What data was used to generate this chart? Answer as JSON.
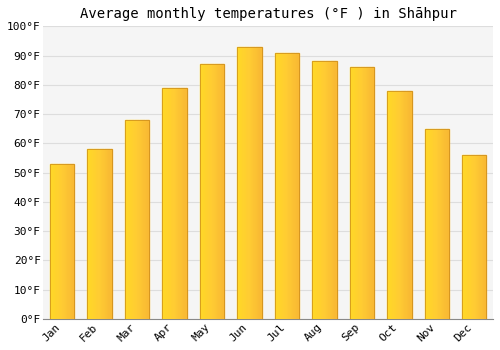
{
  "title": "Average monthly temperatures (°F ) in Shāhpur",
  "months": [
    "Jan",
    "Feb",
    "Mar",
    "Apr",
    "May",
    "Jun",
    "Jul",
    "Aug",
    "Sep",
    "Oct",
    "Nov",
    "Dec"
  ],
  "values": [
    53,
    58,
    68,
    79,
    87,
    93,
    91,
    88,
    86,
    78,
    65,
    56
  ],
  "bar_color": "#F5A800",
  "bar_color_light": "#FFCC44",
  "bar_edge_color": "#C8881A",
  "background_color": "#FFFFFF",
  "plot_bg_color": "#F5F5F5",
  "grid_color": "#DDDDDD",
  "ylim": [
    0,
    100
  ],
  "yticks": [
    0,
    10,
    20,
    30,
    40,
    50,
    60,
    70,
    80,
    90,
    100
  ],
  "ytick_labels": [
    "0°F",
    "10°F",
    "20°F",
    "30°F",
    "40°F",
    "50°F",
    "60°F",
    "70°F",
    "80°F",
    "90°F",
    "100°F"
  ],
  "title_fontsize": 10,
  "tick_fontsize": 8,
  "font_family": "monospace"
}
